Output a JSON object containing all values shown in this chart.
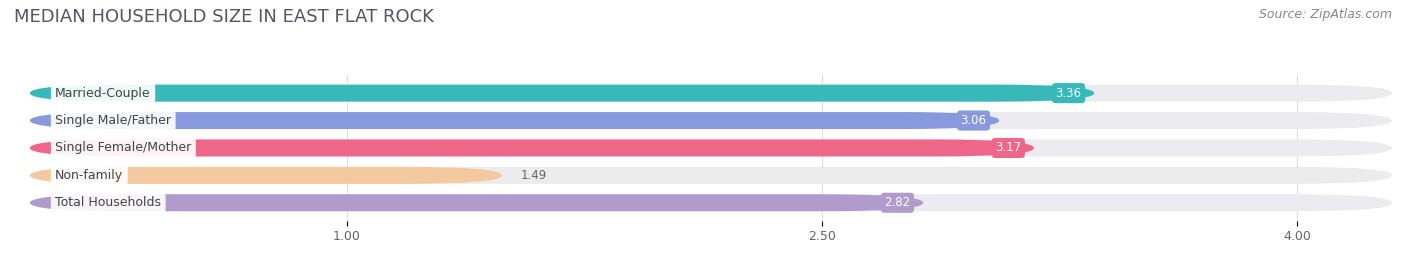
{
  "title": "MEDIAN HOUSEHOLD SIZE IN EAST FLAT ROCK",
  "source": "Source: ZipAtlas.com",
  "categories": [
    "Married-Couple",
    "Single Male/Father",
    "Single Female/Mother",
    "Non-family",
    "Total Households"
  ],
  "values": [
    3.36,
    3.06,
    3.17,
    1.49,
    2.82
  ],
  "bar_colors": [
    "#38b8b8",
    "#8899dd",
    "#ee6688",
    "#f5c9a0",
    "#b09bcc"
  ],
  "value_bg_colors": [
    "#38b8b8",
    "#8899dd",
    "#ee6688",
    "#f5c9a0",
    "#b09bcc"
  ],
  "label_text_colors": [
    "white",
    "white",
    "white",
    "#555555",
    "white"
  ],
  "xticks": [
    1.0,
    2.5,
    4.0
  ],
  "xmin": 0.0,
  "xmax": 4.3,
  "background_color": "#ffffff",
  "bar_bg_color": "#ebebf0",
  "title_fontsize": 13,
  "source_fontsize": 9,
  "label_fontsize": 9,
  "value_fontsize": 8.5,
  "bar_height": 0.62,
  "bar_spacing": 1.0
}
